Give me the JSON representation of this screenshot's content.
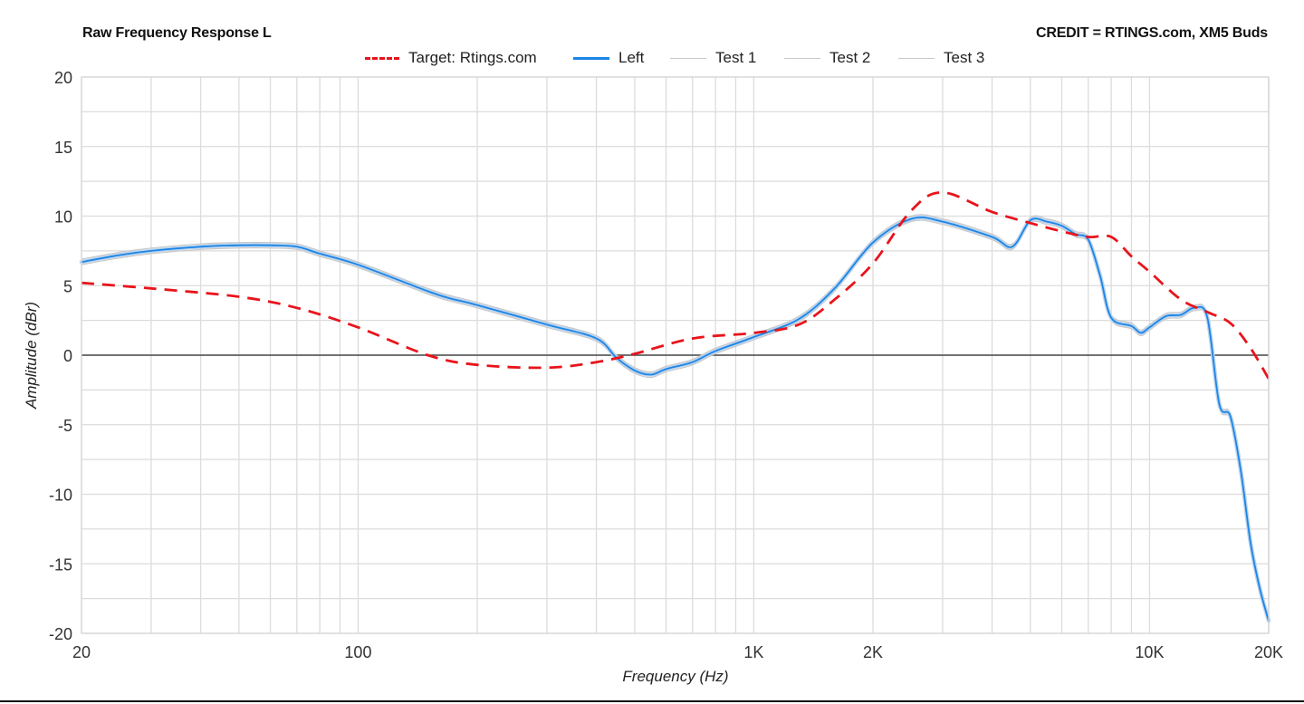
{
  "header": {
    "title": "Raw Frequency Response L",
    "credit": "CREDIT = RTINGS.com, XM5 Buds"
  },
  "legend": [
    {
      "label": "Target: Rtings.com",
      "style": "dashed",
      "color": "#e8141c"
    },
    {
      "label": "Left",
      "style": "solid-thick",
      "color": "#1c85e6"
    },
    {
      "label": "Test 1",
      "style": "solid-thin",
      "color": "#c8c8c8"
    },
    {
      "label": "Test 2",
      "style": "solid-thin",
      "color": "#c8c8c8"
    },
    {
      "label": "Test 3",
      "style": "solid-thin",
      "color": "#c8c8c8"
    }
  ],
  "axes": {
    "xlabel": "Frequency (Hz)",
    "ylabel": "Amplitude (dBr)",
    "x_tick_labels": [
      "20",
      "100",
      "1K",
      "2K",
      "10K",
      "20K"
    ],
    "y_tick_labels": [
      "20",
      "15",
      "10",
      "5",
      "0",
      "-5",
      "-10",
      "-15",
      "-20"
    ]
  },
  "colors": {
    "target": "#e8141c",
    "left": "#1c85e6",
    "tests": "#c8c8c8",
    "grid": "#dcdcdc",
    "zero_line": "#444444"
  },
  "chart_data": {
    "type": "line",
    "title": "Raw Frequency Response L",
    "subtitle": "CREDIT = RTINGS.com, XM5 Buds",
    "xlabel": "Frequency (Hz)",
    "ylabel": "Amplitude (dBr)",
    "xscale": "log",
    "xlim": [
      20,
      20000
    ],
    "ylim": [
      -20,
      20
    ],
    "x_ticks": [
      20,
      100,
      1000,
      2000,
      10000,
      20000
    ],
    "x_tick_labels": [
      "20",
      "100",
      "1K",
      "2K",
      "10K",
      "20K"
    ],
    "y_ticks": [
      20,
      15,
      10,
      5,
      0,
      -5,
      -10,
      -15,
      -20
    ],
    "grid": true,
    "legend_position": "top",
    "series": [
      {
        "name": "Target: Rtings.com",
        "style": "dashed",
        "color": "#e8141c",
        "x": [
          20,
          30,
          50,
          70,
          100,
          150,
          200,
          300,
          400,
          500,
          700,
          1000,
          1300,
          1600,
          2000,
          2500,
          3000,
          4000,
          5000,
          6000,
          7000,
          8000,
          9000,
          10000,
          12000,
          14000,
          16000,
          18000,
          20000
        ],
        "y": [
          5.2,
          4.8,
          4.2,
          3.4,
          2.0,
          0.0,
          -0.7,
          -0.9,
          -0.5,
          0.1,
          1.2,
          1.6,
          2.2,
          4.0,
          6.6,
          10.4,
          11.7,
          10.3,
          9.5,
          8.9,
          8.5,
          8.5,
          7.1,
          6.0,
          4.0,
          3.1,
          2.3,
          0.5,
          -1.7
        ]
      },
      {
        "name": "Left",
        "style": "solid",
        "color": "#1c85e6",
        "x": [
          20,
          25,
          30,
          40,
          50,
          60,
          70,
          80,
          100,
          150,
          170,
          200,
          300,
          400,
          450,
          500,
          550,
          600,
          700,
          800,
          1000,
          1300,
          1600,
          2000,
          2500,
          3000,
          4000,
          4500,
          5000,
          5500,
          6000,
          6500,
          7000,
          7500,
          8000,
          9000,
          9500,
          10000,
          11000,
          12000,
          13000,
          14000,
          15000,
          16000,
          17000,
          18000,
          19000,
          20000
        ],
        "y": [
          6.7,
          7.2,
          7.5,
          7.8,
          7.9,
          7.9,
          7.8,
          7.3,
          6.5,
          4.6,
          4.1,
          3.6,
          2.2,
          1.2,
          -0.2,
          -1.1,
          -1.4,
          -1.0,
          -0.5,
          0.3,
          1.3,
          2.6,
          4.8,
          8.1,
          9.8,
          9.6,
          8.5,
          7.8,
          9.7,
          9.6,
          9.3,
          8.7,
          8.3,
          5.7,
          2.7,
          2.1,
          1.6,
          2.0,
          2.8,
          2.9,
          3.4,
          2.7,
          -3.5,
          -4.4,
          -8.3,
          -13.5,
          -16.8,
          -19.1
        ]
      },
      {
        "name": "Test 1",
        "style": "solid-thin",
        "color": "#c8c8c8",
        "offset_from_left_db": 0.2
      },
      {
        "name": "Test 2",
        "style": "solid-thin",
        "color": "#c8c8c8",
        "offset_from_left_db": -0.2
      },
      {
        "name": "Test 3",
        "style": "solid-thin",
        "color": "#c8c8c8",
        "offset_from_left_db": 0.1
      }
    ]
  }
}
